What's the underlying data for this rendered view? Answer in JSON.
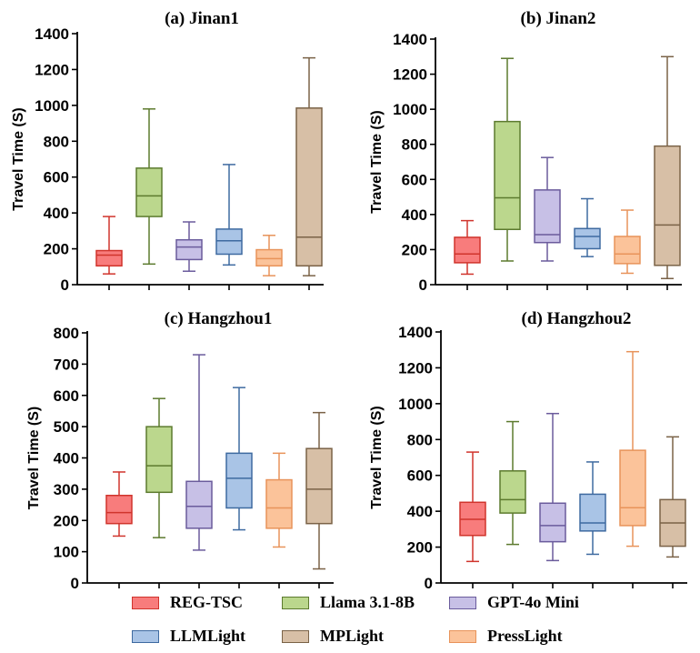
{
  "legend": [
    {
      "name": "REG-TSC",
      "fill": "#F87C7C",
      "stroke": "#D0342C"
    },
    {
      "name": "Llama 3.1-8B",
      "fill": "#BBD78D",
      "stroke": "#5C7A2E"
    },
    {
      "name": "GPT-4o Mini",
      "fill": "#C7C0E6",
      "stroke": "#6A5B9C"
    },
    {
      "name": "LLMLight",
      "fill": "#A9C4E6",
      "stroke": "#3E6AA0"
    },
    {
      "name": "MPLight",
      "fill": "#D7BFA6",
      "stroke": "#7A6247"
    },
    {
      "name": "PressLight",
      "fill": "#FBC39A",
      "stroke": "#E8935A"
    }
  ],
  "chart_data": [
    {
      "type": "boxplot",
      "title": "(a) Jinan1",
      "ylabel": "Travel Time  (S)",
      "ylim": [
        0,
        1400
      ],
      "yticks": [
        "0",
        "200",
        "400",
        "600",
        "800",
        "1000",
        "1200",
        "1400"
      ],
      "boxes": [
        {
          "series": "REG-TSC",
          "min": 60,
          "q1": 105,
          "median": 165,
          "q3": 190,
          "max": 380
        },
        {
          "series": "Llama 3.1-8B",
          "min": 115,
          "q1": 380,
          "median": 495,
          "q3": 650,
          "max": 980
        },
        {
          "series": "GPT-4o Mini",
          "min": 75,
          "q1": 140,
          "median": 210,
          "q3": 250,
          "max": 350
        },
        {
          "series": "LLMLight",
          "min": 110,
          "q1": 170,
          "median": 245,
          "q3": 310,
          "max": 670
        },
        {
          "series": "PressLight",
          "min": 50,
          "q1": 105,
          "median": 145,
          "q3": 195,
          "max": 275
        },
        {
          "series": "MPLight",
          "min": 50,
          "q1": 105,
          "median": 265,
          "q3": 985,
          "max": 1265
        }
      ]
    },
    {
      "type": "boxplot",
      "title": "(b) Jinan2",
      "ylabel": "Travel Time  (S)",
      "ylim": [
        0,
        1400
      ],
      "yticks": [
        "0",
        "200",
        "400",
        "600",
        "800",
        "1000",
        "1200",
        "1400"
      ],
      "boxes": [
        {
          "series": "REG-TSC",
          "min": 60,
          "q1": 125,
          "median": 175,
          "q3": 270,
          "max": 365
        },
        {
          "series": "Llama 3.1-8B",
          "min": 135,
          "q1": 315,
          "median": 495,
          "q3": 930,
          "max": 1290
        },
        {
          "series": "GPT-4o Mini",
          "min": 135,
          "q1": 240,
          "median": 285,
          "q3": 540,
          "max": 725
        },
        {
          "series": "LLMLight",
          "min": 160,
          "q1": 205,
          "median": 275,
          "q3": 320,
          "max": 490
        },
        {
          "series": "PressLight",
          "min": 65,
          "q1": 120,
          "median": 175,
          "q3": 275,
          "max": 425
        },
        {
          "series": "MPLight",
          "min": 35,
          "q1": 110,
          "median": 340,
          "q3": 790,
          "max": 1300
        }
      ]
    },
    {
      "type": "boxplot",
      "title": "(c) Hangzhou1",
      "ylabel": "Travel Time  (S)",
      "ylim": [
        0,
        800
      ],
      "yticks": [
        "0",
        "100",
        "200",
        "300",
        "400",
        "500",
        "600",
        "700",
        "800"
      ],
      "boxes": [
        {
          "series": "REG-TSC",
          "min": 150,
          "q1": 190,
          "median": 225,
          "q3": 280,
          "max": 355
        },
        {
          "series": "Llama 3.1-8B",
          "min": 145,
          "q1": 290,
          "median": 375,
          "q3": 500,
          "max": 590
        },
        {
          "series": "GPT-4o Mini",
          "min": 105,
          "q1": 175,
          "median": 245,
          "q3": 325,
          "max": 730
        },
        {
          "series": "LLMLight",
          "min": 170,
          "q1": 240,
          "median": 335,
          "q3": 415,
          "max": 625
        },
        {
          "series": "PressLight",
          "min": 115,
          "q1": 175,
          "median": 240,
          "q3": 330,
          "max": 415
        },
        {
          "series": "MPLight",
          "min": 45,
          "q1": 190,
          "median": 300,
          "q3": 430,
          "max": 545
        }
      ]
    },
    {
      "type": "boxplot",
      "title": "(d) Hangzhou2",
      "ylabel": "Travel Time  (S)",
      "ylim": [
        0,
        1400
      ],
      "yticks": [
        "0",
        "200",
        "400",
        "600",
        "800",
        "1000",
        "1200",
        "1400"
      ],
      "boxes": [
        {
          "series": "REG-TSC",
          "min": 120,
          "q1": 265,
          "median": 355,
          "q3": 450,
          "max": 730
        },
        {
          "series": "Llama 3.1-8B",
          "min": 215,
          "q1": 390,
          "median": 465,
          "q3": 625,
          "max": 900
        },
        {
          "series": "GPT-4o Mini",
          "min": 125,
          "q1": 230,
          "median": 320,
          "q3": 445,
          "max": 945
        },
        {
          "series": "LLMLight",
          "min": 160,
          "q1": 290,
          "median": 335,
          "q3": 495,
          "max": 675
        },
        {
          "series": "PressLight",
          "min": 205,
          "q1": 320,
          "median": 420,
          "q3": 740,
          "max": 1290
        },
        {
          "series": "MPLight",
          "min": 145,
          "q1": 205,
          "median": 335,
          "q3": 465,
          "max": 815
        }
      ]
    }
  ]
}
